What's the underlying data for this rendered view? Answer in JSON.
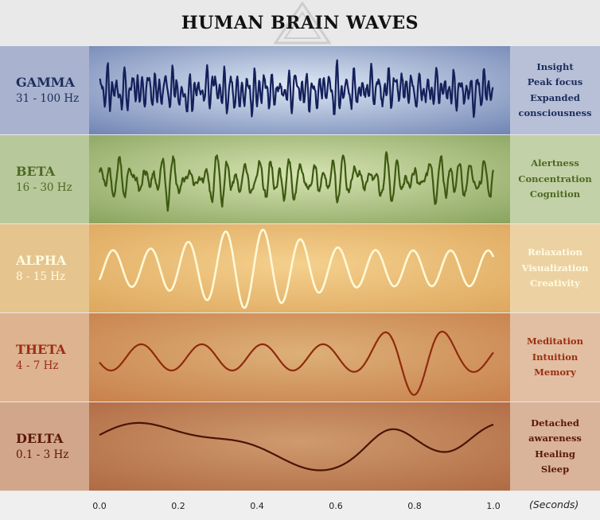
{
  "title": "HUMAN BRAIN WAVES",
  "waves": [
    {
      "key": "gamma",
      "name": "GAMMA",
      "range": "31 - 100 Hz",
      "descriptions": [
        "Insight",
        "Peak focus",
        "Expanded",
        "consciousness"
      ],
      "text_color": "#1c2d5c",
      "wave_color": "#13205a",
      "left_bg": "#a9b3cf",
      "right_bg": "#b8c0d8",
      "band_edge": "#6f84b3",
      "band_center": "#dfe8f5",
      "wave": {
        "amplitude": 0.55,
        "freqs": [
          48,
          67,
          91
        ],
        "noise": 0.75,
        "seed": 3,
        "stroke": 2.2
      }
    },
    {
      "key": "beta",
      "name": "BETA",
      "range": "16 - 30 Hz",
      "descriptions": [
        "Alertness",
        "Concentration",
        "Cognition"
      ],
      "text_color": "#4d6a23",
      "wave_color": "#3e5a12",
      "left_bg": "#b7c89a",
      "right_bg": "#c3d1a8",
      "band_edge": "#89a35e",
      "band_center": "#d6e4b2",
      "wave": {
        "amplitude": 0.58,
        "freqs": [
          28,
          37,
          44
        ],
        "noise": 0.55,
        "seed": 11,
        "stroke": 2.2
      }
    },
    {
      "key": "alpha",
      "name": "ALPHA",
      "range": "8 - 15 Hz",
      "descriptions": [
        "Relaxation",
        "Visualization",
        "Creativity"
      ],
      "text_color": "#fffbe2",
      "wave_color": "#fff9d6",
      "left_bg": "#e6c48e",
      "right_bg": "#ecd2a3",
      "band_edge": "#dda75e",
      "band_center": "#f4d08d",
      "wave": {
        "amplitude": 0.9,
        "freqs": [
          10.5
        ],
        "noise": 0.0,
        "seed": 5,
        "stroke": 2.6
      }
    },
    {
      "key": "theta",
      "name": "THETA",
      "range": "4 - 7 Hz",
      "descriptions": [
        "Meditation",
        "Intuition",
        "Memory"
      ],
      "text_color": "#9c2e12",
      "wave_color": "#8f2a0e",
      "left_bg": "#ddb390",
      "right_bg": "#e2bfa2",
      "band_edge": "#c8804c",
      "band_center": "#ddb078",
      "wave": {
        "amplitude": 0.85,
        "freqs": [
          6.5
        ],
        "noise": 0.0,
        "seed": 7,
        "stroke": 2.2
      }
    },
    {
      "key": "delta",
      "name": "DELTA",
      "range": "0.1 - 3 Hz",
      "descriptions": [
        "Detached",
        "awareness",
        "Healing",
        "Sleep"
      ],
      "text_color": "#5a1808",
      "wave_color": "#4a1406",
      "left_bg": "#d2a68a",
      "right_bg": "#d9b39a",
      "band_edge": "#b06a43",
      "band_center": "#cf9a6e",
      "wave": {
        "amplitude": 0.85,
        "freqs": [
          2.2
        ],
        "noise": 0.0,
        "seed": 9,
        "stroke": 2.2
      }
    }
  ],
  "axis": {
    "ticks": [
      "0.0",
      "0.2",
      "0.4",
      "0.6",
      "0.8",
      "1.0"
    ],
    "unit": "(Seconds)"
  }
}
